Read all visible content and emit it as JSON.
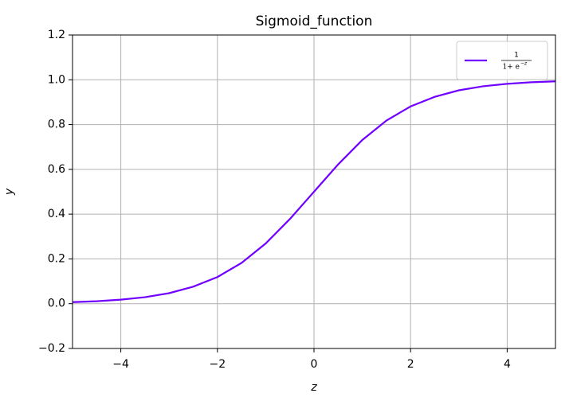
{
  "chart_data": {
    "type": "line",
    "title": "Sigmoid_function",
    "xlabel": "z",
    "ylabel": "y",
    "x": [
      -5,
      -4.5,
      -4,
      -3.5,
      -3,
      -2.5,
      -2,
      -1.5,
      -1,
      -0.5,
      0,
      0.5,
      1,
      1.5,
      2,
      2.5,
      3,
      3.5,
      4,
      4.5,
      5
    ],
    "series": [
      {
        "name": {
          "numerator": "1",
          "denominator": "1+ e",
          "exponent": "−z"
        },
        "color": "#7000ff",
        "values": [
          0.007,
          0.011,
          0.018,
          0.029,
          0.047,
          0.076,
          0.119,
          0.182,
          0.269,
          0.378,
          0.5,
          0.622,
          0.731,
          0.818,
          0.881,
          0.924,
          0.953,
          0.971,
          0.982,
          0.989,
          0.993
        ]
      }
    ],
    "xlim": [
      -5,
      5
    ],
    "ylim": [
      -0.2,
      1.2
    ],
    "xticks": [
      {
        "value": -4,
        "label": "−4"
      },
      {
        "value": -2,
        "label": "−2"
      },
      0,
      2,
      4
    ],
    "yticks": [
      {
        "value": -0.2,
        "label": "−0.2"
      },
      {
        "value": 0,
        "label": "0.0"
      },
      0.2,
      0.4,
      0.6,
      0.8,
      {
        "value": 1,
        "label": "1.0"
      },
      1.2
    ],
    "grid": true,
    "legend": "upper right"
  }
}
